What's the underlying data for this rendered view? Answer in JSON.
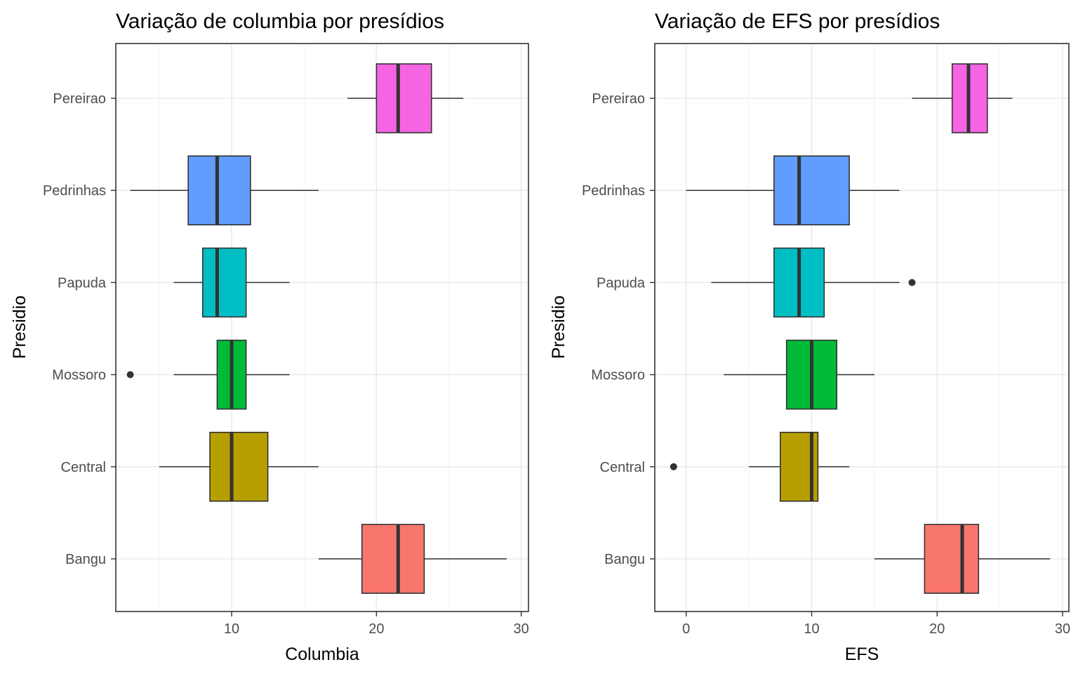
{
  "chart_data": [
    {
      "type": "boxplot",
      "title": "Variação de columbia por presídios",
      "xlabel": "Columbia",
      "ylabel": "Presidio",
      "xlim": [
        2,
        30.5
      ],
      "xticks": [
        10,
        20,
        30
      ],
      "grid": true,
      "orientation": "horizontal",
      "categories": [
        "Bangu",
        "Central",
        "Mossoro",
        "Papuda",
        "Pedrinhas",
        "Pereirao"
      ],
      "boxes": [
        {
          "category": "Bangu",
          "whisker_low": 16,
          "q1": 19,
          "median": 21.5,
          "q3": 23.3,
          "whisker_high": 29,
          "outliers": [],
          "color": "#F8766D"
        },
        {
          "category": "Central",
          "whisker_low": 5,
          "q1": 8.5,
          "median": 10,
          "q3": 12.5,
          "whisker_high": 16,
          "outliers": [],
          "color": "#B79F00"
        },
        {
          "category": "Mossoro",
          "whisker_low": 6,
          "q1": 9,
          "median": 10,
          "q3": 11,
          "whisker_high": 14,
          "outliers": [
            3
          ],
          "color": "#00BA38"
        },
        {
          "category": "Papuda",
          "whisker_low": 6,
          "q1": 8,
          "median": 9,
          "q3": 11,
          "whisker_high": 14,
          "outliers": [],
          "color": "#00BFC4"
        },
        {
          "category": "Pedrinhas",
          "whisker_low": 3,
          "q1": 7,
          "median": 9,
          "q3": 11.3,
          "whisker_high": 16,
          "outliers": [],
          "color": "#619CFF"
        },
        {
          "category": "Pereirao",
          "whisker_low": 18,
          "q1": 20,
          "median": 21.5,
          "q3": 23.8,
          "whisker_high": 26,
          "outliers": [],
          "color": "#F564E3"
        }
      ]
    },
    {
      "type": "boxplot",
      "title": "Variação de EFS por presídios",
      "xlabel": "EFS",
      "ylabel": "Presidio",
      "xlim": [
        -2.5,
        30.5
      ],
      "xticks": [
        0,
        10,
        20,
        30
      ],
      "grid": true,
      "orientation": "horizontal",
      "categories": [
        "Bangu",
        "Central",
        "Mossoro",
        "Papuda",
        "Pedrinhas",
        "Pereirao"
      ],
      "boxes": [
        {
          "category": "Bangu",
          "whisker_low": 15,
          "q1": 19,
          "median": 22,
          "q3": 23.3,
          "whisker_high": 29,
          "outliers": [],
          "color": "#F8766D"
        },
        {
          "category": "Central",
          "whisker_low": 5,
          "q1": 7.5,
          "median": 10,
          "q3": 10.5,
          "whisker_high": 13,
          "outliers": [
            -1
          ],
          "color": "#B79F00"
        },
        {
          "category": "Mossoro",
          "whisker_low": 3,
          "q1": 8,
          "median": 10,
          "q3": 12,
          "whisker_high": 15,
          "outliers": [],
          "color": "#00BA38"
        },
        {
          "category": "Papuda",
          "whisker_low": 2,
          "q1": 7,
          "median": 9,
          "q3": 11,
          "whisker_high": 17,
          "outliers": [
            18
          ],
          "color": "#00BFC4"
        },
        {
          "category": "Pedrinhas",
          "whisker_low": 0,
          "q1": 7,
          "median": 9,
          "q3": 13,
          "whisker_high": 17,
          "outliers": [],
          "color": "#619CFF"
        },
        {
          "category": "Pereirao",
          "whisker_low": 18,
          "q1": 21.2,
          "median": 22.5,
          "q3": 24,
          "whisker_high": 26,
          "outliers": [],
          "color": "#F564E3"
        }
      ]
    }
  ]
}
